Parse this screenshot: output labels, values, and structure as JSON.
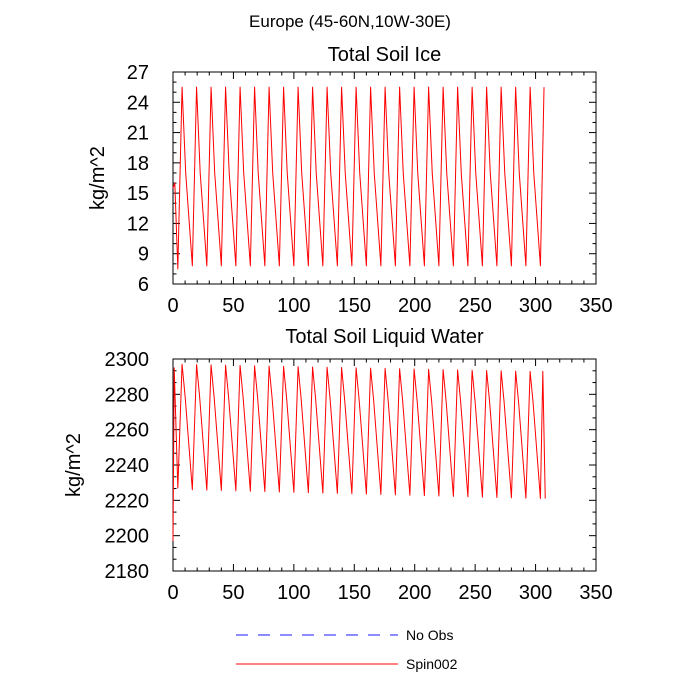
{
  "figure": {
    "title": "Europe (45-60N,10W-30E)"
  },
  "colors": {
    "spin002": "#ff0000",
    "no_obs": "#1a1aff",
    "axis": "#000000",
    "background": "#ffffff"
  },
  "legend": [
    {
      "label": "No Obs",
      "style": "dashed",
      "color": "#1a1aff"
    },
    {
      "label": "Spin002",
      "style": "solid",
      "color": "#ff0000"
    }
  ],
  "chart_data": [
    {
      "type": "line",
      "title": "Total Soil Ice",
      "xlabel": "",
      "ylabel": "kg/m^2",
      "xlim": [
        0,
        350
      ],
      "ylim": [
        6,
        27
      ],
      "xticks": [
        0,
        50,
        100,
        150,
        200,
        250,
        300,
        350
      ],
      "yticks": [
        6,
        9,
        12,
        15,
        18,
        21,
        24,
        27
      ],
      "grid": false,
      "series": [
        {
          "name": "Spin002",
          "color": "#ff0000",
          "x_start": 0,
          "x_end": 307,
          "period": 12,
          "first_value": 15.5,
          "first_peak": 16.0,
          "first_trough": 7.5,
          "peak": 25.5,
          "trough": 7.8,
          "shoulder": 17.0,
          "last_value": 25.5
        },
        {
          "name": "No Obs",
          "color": "#1a1aff",
          "values": []
        }
      ]
    },
    {
      "type": "line",
      "title": "Total Soil Liquid Water",
      "xlabel": "",
      "ylabel": "kg/m^2",
      "xlim": [
        0,
        350
      ],
      "ylim": [
        2180,
        2300
      ],
      "xticks": [
        0,
        50,
        100,
        150,
        200,
        250,
        300,
        350
      ],
      "yticks": [
        2180,
        2200,
        2220,
        2240,
        2260,
        2280,
        2300
      ],
      "grid": false,
      "series": [
        {
          "name": "Spin002",
          "color": "#ff0000",
          "x_start": 0,
          "x_end": 308,
          "period": 12,
          "first_value": 2197,
          "first_peak": 2295,
          "first_trough": 2227,
          "peak_start": 2297,
          "peak_end": 2293,
          "trough_start": 2226,
          "trough_end": 2221,
          "last_value": 2221
        },
        {
          "name": "No Obs",
          "color": "#1a1aff",
          "values": []
        }
      ]
    }
  ]
}
